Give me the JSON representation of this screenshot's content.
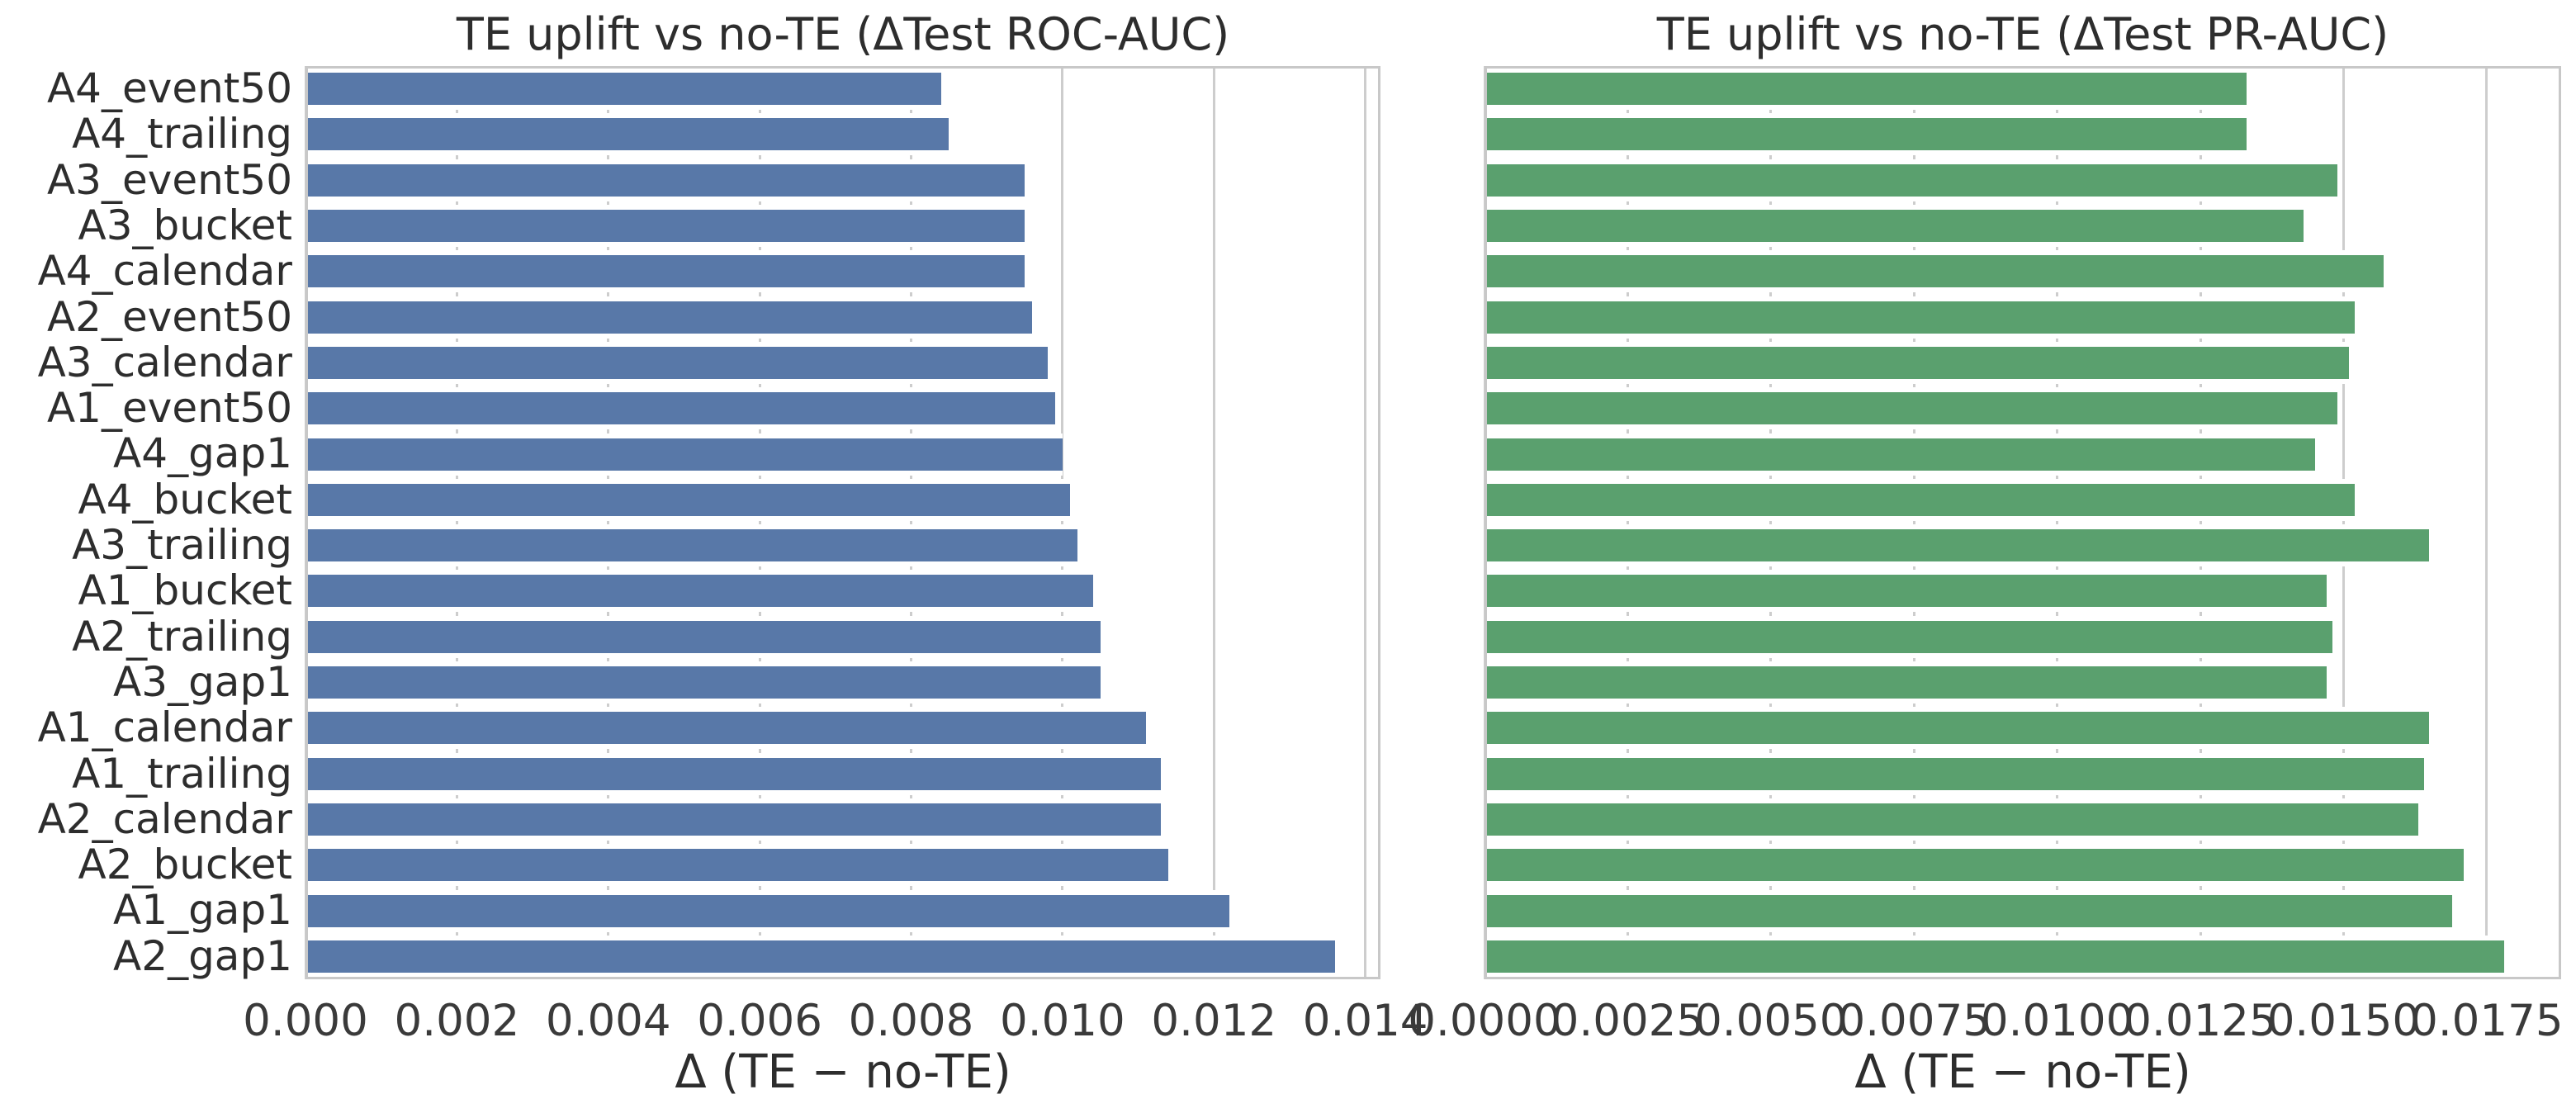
{
  "figure": {
    "background": "#ffffff",
    "text_color": "#2d2d2d",
    "grid_color": "#cdcdcd",
    "frame_color": "#c8c8c8"
  },
  "chart_data": [
    {
      "type": "bar",
      "orientation": "horizontal",
      "title": "TE uplift vs no-TE (ΔTest ROC-AUC)",
      "xlabel": "Δ (TE − no-TE)",
      "ylabel": "",
      "bar_color": "#5878a8",
      "legend": null,
      "grid": true,
      "categories": [
        "A4_event50",
        "A4_trailing",
        "A3_event50",
        "A3_bucket",
        "A4_calendar",
        "A2_event50",
        "A3_calendar",
        "A1_event50",
        "A4_gap1",
        "A4_bucket",
        "A3_trailing",
        "A1_bucket",
        "A2_trailing",
        "A3_gap1",
        "A1_calendar",
        "A1_trailing",
        "A2_calendar",
        "A2_bucket",
        "A1_gap1",
        "A2_gap1"
      ],
      "values": [
        0.0084,
        0.0085,
        0.0095,
        0.0095,
        0.0095,
        0.0096,
        0.0098,
        0.0099,
        0.01,
        0.0101,
        0.0102,
        0.0104,
        0.0105,
        0.0105,
        0.0111,
        0.0113,
        0.0113,
        0.0114,
        0.0122,
        0.0136
      ],
      "xlim": [
        0,
        0.0142
      ],
      "xticks": [
        0.0,
        0.002,
        0.004,
        0.006,
        0.008,
        0.01,
        0.012,
        0.014
      ],
      "xtick_labels": [
        "0.000",
        "0.002",
        "0.004",
        "0.006",
        "0.008",
        "0.010",
        "0.012",
        "0.014"
      ],
      "ytick_labels_visible": true
    },
    {
      "type": "bar",
      "orientation": "horizontal",
      "title": "TE uplift vs no-TE (ΔTest PR-AUC)",
      "xlabel": "Δ (TE − no-TE)",
      "ylabel": "",
      "bar_color": "#5aa06e",
      "legend": null,
      "grid": true,
      "categories": [
        "A4_event50",
        "A4_trailing",
        "A3_event50",
        "A3_bucket",
        "A4_calendar",
        "A2_event50",
        "A3_calendar",
        "A1_event50",
        "A4_gap1",
        "A4_bucket",
        "A3_trailing",
        "A1_bucket",
        "A2_trailing",
        "A3_gap1",
        "A1_calendar",
        "A1_trailing",
        "A2_calendar",
        "A2_bucket",
        "A1_gap1",
        "A2_gap1"
      ],
      "values": [
        0.0133,
        0.0133,
        0.0149,
        0.0143,
        0.0157,
        0.0152,
        0.0151,
        0.0149,
        0.0145,
        0.0152,
        0.0165,
        0.0147,
        0.0148,
        0.0147,
        0.0165,
        0.0164,
        0.0163,
        0.0171,
        0.0169,
        0.0178
      ],
      "xlim": [
        0,
        0.0188
      ],
      "xticks": [
        0.0,
        0.0025,
        0.005,
        0.0075,
        0.01,
        0.0125,
        0.015,
        0.0175
      ],
      "xtick_labels": [
        "0.0000",
        "0.0025",
        "0.0050",
        "0.0075",
        "0.0100",
        "0.0125",
        "0.0150",
        "0.0175"
      ],
      "ytick_labels_visible": false
    }
  ]
}
